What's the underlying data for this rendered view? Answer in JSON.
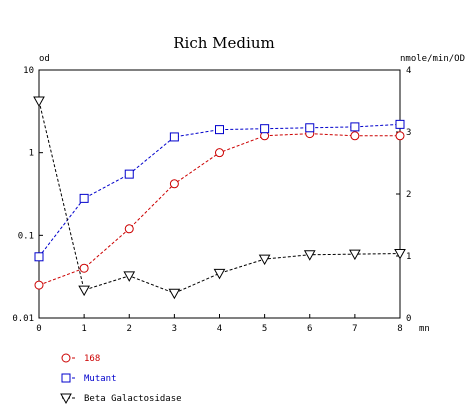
{
  "chart_data": {
    "type": "line",
    "title": "Rich Medium",
    "xlabel": "mn",
    "ylabel_left": "od",
    "ylabel_right": "nmole/min/OD",
    "x": [
      0,
      1,
      2,
      3,
      4,
      5,
      6,
      7,
      8
    ],
    "xlim": [
      0,
      8
    ],
    "x_ticks": [
      "0",
      "1",
      "2",
      "3",
      "4",
      "5",
      "6",
      "7",
      "8"
    ],
    "y_left_scale": "log",
    "y_left_lim": [
      0.01,
      10
    ],
    "y_left_ticks": [
      {
        "value": 0.01,
        "label": "0.01"
      },
      {
        "value": 0.1,
        "label": "0.1"
      },
      {
        "value": 1,
        "label": "1"
      },
      {
        "value": 10,
        "label": "10"
      }
    ],
    "y_right_lim": [
      0,
      4
    ],
    "y_right_ticks": [
      {
        "value": 0,
        "label": "0"
      },
      {
        "value": 1,
        "label": "1"
      },
      {
        "value": 2,
        "label": "2"
      },
      {
        "value": 3,
        "label": "3"
      },
      {
        "value": 4,
        "label": "4"
      }
    ],
    "grid": false,
    "legend_position": "bottom-left",
    "series": [
      {
        "name": "168",
        "axis": "left",
        "marker": "circle",
        "color": "#cc0000",
        "values": [
          0.025,
          0.04,
          0.12,
          0.42,
          1.0,
          1.6,
          1.7,
          1.6,
          1.6
        ]
      },
      {
        "name": "Mutant",
        "axis": "left",
        "marker": "square",
        "color": "#0000cc",
        "values": [
          0.055,
          0.28,
          0.55,
          1.55,
          1.9,
          1.95,
          2.0,
          2.05,
          2.2
        ]
      },
      {
        "name": "Beta Galactosidase",
        "axis": "right",
        "marker": "triangle-down",
        "color": "#000000",
        "values": [
          3.5,
          0.45,
          0.68,
          0.4,
          0.72,
          0.95,
          1.02,
          1.03,
          1.04
        ]
      }
    ]
  }
}
